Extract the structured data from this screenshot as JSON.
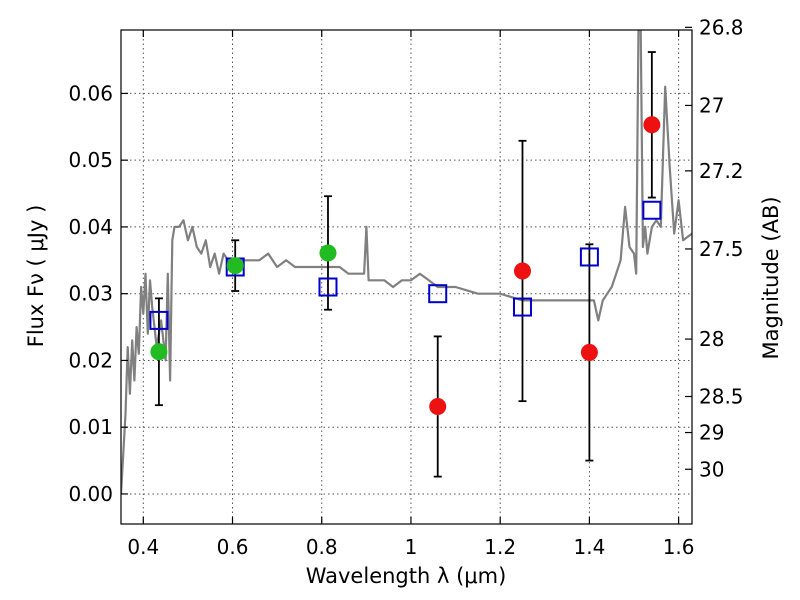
{
  "chart_data": {
    "type": "scatter",
    "title": "",
    "xlabel": "Wavelength  λ (μm)",
    "ylabel": "Flux  Fν  ( μJy )",
    "y2label": "Magnitude (AB)",
    "xlim": [
      0.35,
      1.63
    ],
    "ylim": [
      -0.0045,
      0.0695
    ],
    "grid": true,
    "x_ticks": [
      0.4,
      0.6,
      0.8,
      1.0,
      1.2,
      1.4,
      1.6
    ],
    "x_tick_labels": [
      "0.4",
      "0.6",
      "0.8",
      "1",
      "1.2",
      "1.4",
      "1.6"
    ],
    "y_ticks": [
      0.0,
      0.01,
      0.02,
      0.03,
      0.04,
      0.05,
      0.06
    ],
    "y_tick_labels": [
      "0.00",
      "0.01",
      "0.02",
      "0.03",
      "0.04",
      "0.05",
      "0.06"
    ],
    "y2_ticks": [
      {
        "label": "26.8",
        "flux": 0.0699
      },
      {
        "label": "27",
        "flux": 0.0582
      },
      {
        "label": "27.2",
        "flux": 0.0484
      },
      {
        "label": "27.5",
        "flux": 0.0367
      },
      {
        "label": "28",
        "flux": 0.0232
      },
      {
        "label": "28.5",
        "flux": 0.0146
      },
      {
        "label": "29",
        "flux": 0.0092
      },
      {
        "label": "30",
        "flux": 0.0037
      }
    ],
    "series": [
      {
        "role": "template-spectrum",
        "color": "#808080",
        "x": [
          0.35,
          0.36,
          0.365,
          0.37,
          0.375,
          0.38,
          0.385,
          0.39,
          0.395,
          0.4,
          0.405,
          0.41,
          0.415,
          0.42,
          0.43,
          0.44,
          0.45,
          0.455,
          0.46,
          0.465,
          0.47,
          0.48,
          0.49,
          0.5,
          0.51,
          0.52,
          0.53,
          0.54,
          0.55,
          0.56,
          0.57,
          0.58,
          0.59,
          0.6,
          0.62,
          0.64,
          0.66,
          0.68,
          0.7,
          0.72,
          0.74,
          0.76,
          0.78,
          0.8,
          0.82,
          0.84,
          0.86,
          0.88,
          0.895,
          0.9,
          0.905,
          0.92,
          0.94,
          0.96,
          0.98,
          1.0,
          1.02,
          1.04,
          1.06,
          1.08,
          1.1,
          1.15,
          1.2,
          1.25,
          1.3,
          1.35,
          1.4,
          1.41,
          1.42,
          1.43,
          1.44,
          1.45,
          1.46,
          1.47,
          1.48,
          1.49,
          1.5,
          1.505,
          1.51,
          1.515,
          1.52,
          1.525,
          1.53,
          1.54,
          1.55,
          1.56,
          1.57,
          1.58,
          1.59,
          1.6,
          1.61,
          1.63
        ],
        "y": [
          0.0,
          0.012,
          0.022,
          0.015,
          0.023,
          0.017,
          0.025,
          0.021,
          0.031,
          0.027,
          0.033,
          0.024,
          0.032,
          0.028,
          0.022,
          0.026,
          0.02,
          0.033,
          0.017,
          0.038,
          0.04,
          0.04,
          0.041,
          0.038,
          0.04,
          0.037,
          0.036,
          0.038,
          0.034,
          0.036,
          0.033,
          0.036,
          0.035,
          0.034,
          0.035,
          0.035,
          0.035,
          0.036,
          0.034,
          0.035,
          0.034,
          0.034,
          0.034,
          0.034,
          0.034,
          0.034,
          0.033,
          0.033,
          0.033,
          0.04,
          0.032,
          0.032,
          0.032,
          0.031,
          0.032,
          0.032,
          0.033,
          0.032,
          0.031,
          0.031,
          0.031,
          0.03,
          0.03,
          0.029,
          0.029,
          0.029,
          0.029,
          0.029,
          0.026,
          0.029,
          0.03,
          0.031,
          0.033,
          0.035,
          0.043,
          0.037,
          0.036,
          0.033,
          0.07,
          0.07,
          0.037,
          0.04,
          0.036,
          0.04,
          0.041,
          0.04,
          0.061,
          0.049,
          0.039,
          0.044,
          0.038,
          0.039
        ]
      },
      {
        "role": "model-photometry",
        "marker": "open-square",
        "color": "#0000cc",
        "x": [
          0.435,
          0.606,
          0.814,
          1.06,
          1.25,
          1.4,
          1.54
        ],
        "y": [
          0.026,
          0.034,
          0.031,
          0.03,
          0.028,
          0.0355,
          0.0425
        ]
      },
      {
        "role": "observed-detections",
        "marker": "filled-circle",
        "color": "#22bb22",
        "x": [
          0.435,
          0.606,
          0.814
        ],
        "y": [
          0.0213,
          0.0342,
          0.0361
        ],
        "yerr": [
          0.008,
          0.0038,
          0.0085
        ]
      },
      {
        "role": "observed-ir",
        "marker": "filled-circle",
        "color": "#ee1111",
        "x": [
          1.06,
          1.25,
          1.4,
          1.54
        ],
        "y": [
          0.0131,
          0.0334,
          0.0212,
          0.0553
        ],
        "yerr": [
          0.0105,
          0.0195,
          0.0162,
          0.0109
        ]
      }
    ]
  }
}
